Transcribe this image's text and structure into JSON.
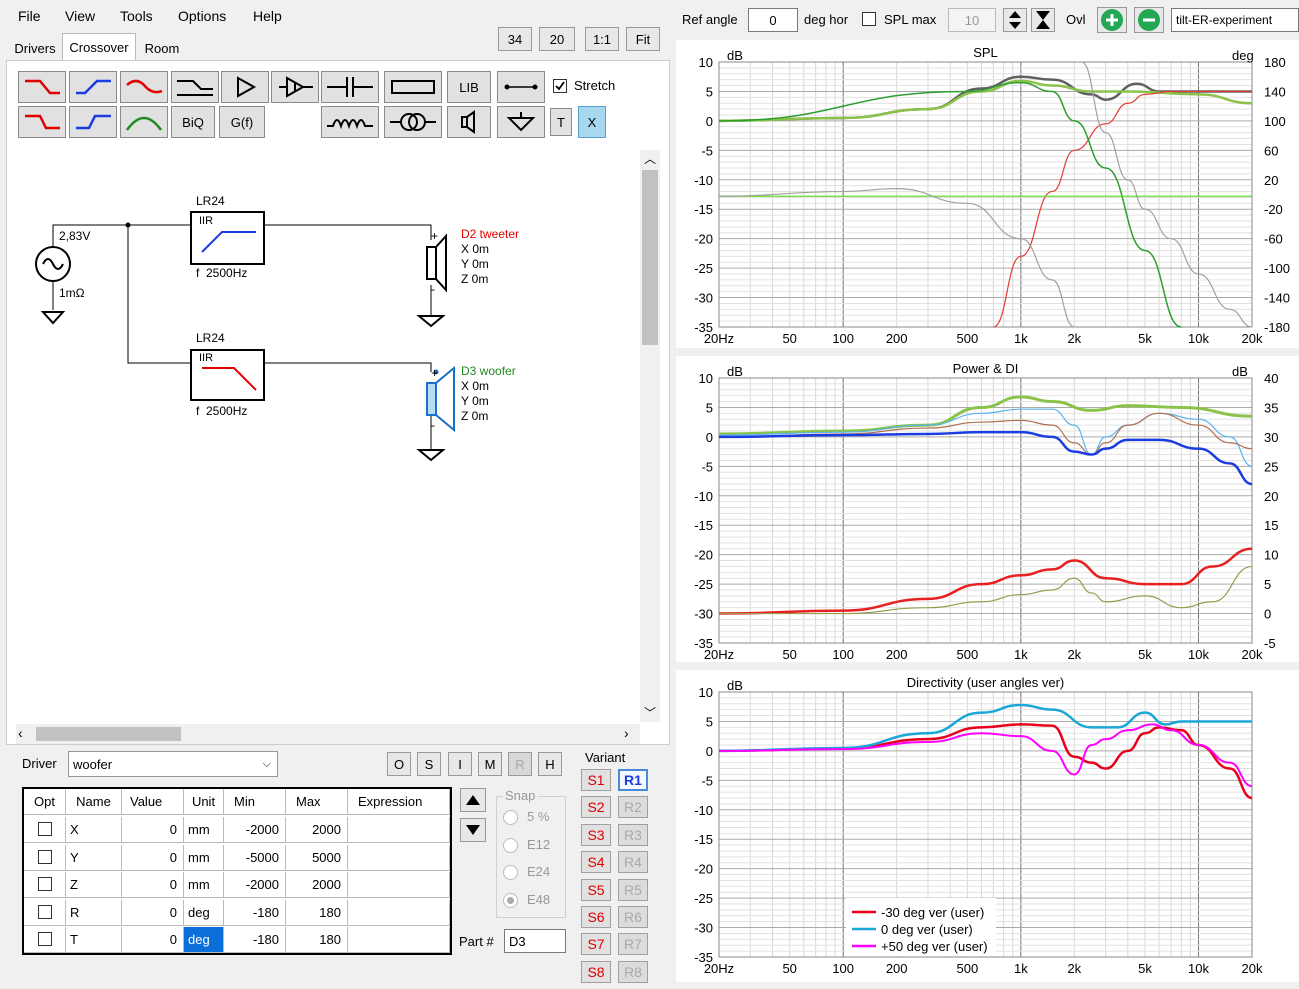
{
  "menu": [
    "File",
    "View",
    "Tools",
    "Options",
    "Help"
  ],
  "tabs": [
    "Drivers",
    "Crossover",
    "Room"
  ],
  "zoom": {
    "v1": "34",
    "v2": "20",
    "one": "1:1",
    "fit": "Fit"
  },
  "toolbar": {
    "lib": "LIB",
    "biq": "BiQ",
    "gf": "G(f)",
    "stretch": "Stretch",
    "t": "T",
    "x": "X"
  },
  "schematic": {
    "source_v": "2,83V",
    "source_r": "1mΩ",
    "hp": {
      "title": "LR24",
      "type": "IIR",
      "freq": "f  2500Hz"
    },
    "lp": {
      "title": "LR24",
      "type": "IIR",
      "freq": "f  2500Hz"
    },
    "tweeter": {
      "name": "D2 tweeter",
      "x": "X 0m",
      "y": "Y 0m",
      "z": "Z 0m"
    },
    "woofer": {
      "name": "D3 woofer",
      "x": "X 0m",
      "y": "Y 0m",
      "z": "Z 0m"
    }
  },
  "driver": {
    "label": "Driver",
    "value": "woofer",
    "buttons": [
      "O",
      "S",
      "I",
      "M",
      "R",
      "H"
    ]
  },
  "table": {
    "headers": [
      "Opt",
      "Name",
      "Value",
      "Unit",
      "Min",
      "Max",
      "Expression"
    ],
    "rows": [
      {
        "name": "X",
        "value": "0",
        "unit": "mm",
        "min": "-2000",
        "max": "2000"
      },
      {
        "name": "Y",
        "value": "0",
        "unit": "mm",
        "min": "-5000",
        "max": "5000"
      },
      {
        "name": "Z",
        "value": "0",
        "unit": "mm",
        "min": "-2000",
        "max": "2000"
      },
      {
        "name": "R",
        "value": "0",
        "unit": "deg",
        "min": "-180",
        "max": "180"
      },
      {
        "name": "T",
        "value": "0",
        "unit": "deg",
        "min": "-180",
        "max": "180"
      }
    ]
  },
  "snap": {
    "title": "Snap",
    "options": [
      "5 %",
      "E12",
      "E24",
      "E48"
    ]
  },
  "part": {
    "label": "Part #",
    "value": "D3"
  },
  "variant": {
    "title": "Variant",
    "s": [
      "S1",
      "S2",
      "S3",
      "S4",
      "S5",
      "S6",
      "S7",
      "S8"
    ],
    "r": [
      "R1",
      "R2",
      "R3",
      "R4",
      "R5",
      "R6",
      "R7",
      "R8"
    ]
  },
  "topbar": {
    "ref_angle": "Ref angle",
    "ref_value": "0",
    "deg_hor": "deg hor",
    "spl_max": "SPL max",
    "spl_value": "10",
    "ovl": "Ovl",
    "project": "tilt-ER-experiment"
  },
  "charts": {
    "spl": {
      "title": "SPL",
      "left_unit": "dB",
      "right_unit": "deg",
      "yticks": [
        "10",
        "5",
        "0",
        "-5",
        "-10",
        "-15",
        "-20",
        "-25",
        "-30",
        "-35"
      ],
      "right_ticks": [
        "180",
        "140",
        "100",
        "60",
        "20",
        "-20",
        "-60",
        "-100",
        "-140",
        "-180"
      ]
    },
    "power": {
      "title": "Power & DI",
      "left_unit": "dB",
      "right_unit": "dB",
      "yticks": [
        "10",
        "5",
        "0",
        "-5",
        "-10",
        "-15",
        "-20",
        "-25",
        "-30",
        "-35"
      ],
      "right_ticks": [
        "40",
        "35",
        "30",
        "25",
        "20",
        "15",
        "10",
        "5",
        "0",
        "-5"
      ]
    },
    "dir": {
      "title": "Directivity (user angles ver)",
      "left_unit": "dB",
      "yticks": [
        "10",
        "5",
        "0",
        "-5",
        "-10",
        "-15",
        "-20",
        "-25",
        "-30",
        "-35"
      ],
      "legend": [
        {
          "label": "-30 deg ver (user)",
          "color": "#e8001c"
        },
        {
          "label": "0 deg ver (user)",
          "color": "#1aa7d8"
        },
        {
          "label": "+50 deg ver (user)",
          "color": "#ff00ff"
        }
      ]
    },
    "xticks": [
      "20Hz",
      "50",
      "100",
      "200",
      "500",
      "1k",
      "2k",
      "5k",
      "10k",
      "20k"
    ]
  },
  "chart_data": [
    {
      "type": "line",
      "title": "SPL",
      "xscale": "log",
      "xlim": [
        20,
        20000
      ],
      "ylim": [
        -35,
        10
      ],
      "ylabel": "dB",
      "series": [
        {
          "color": "#606060",
          "x": [
            20,
            100,
            300,
            600,
            1000,
            1500,
            2500,
            3000,
            4500,
            6000,
            10000,
            20000
          ],
          "y": [
            0,
            0.5,
            2,
            5.5,
            7.5,
            7,
            4.5,
            3.6,
            6.3,
            5,
            5,
            5
          ]
        },
        {
          "color": "#8bc34a",
          "x": [
            20,
            100,
            300,
            600,
            1000,
            1500,
            2500,
            4000,
            10000,
            20000
          ],
          "y": [
            0,
            0.5,
            2,
            5,
            6.8,
            6,
            5,
            5,
            4.5,
            3
          ]
        },
        {
          "color": "#e53935",
          "x": [
            700,
            1000,
            1500,
            2000,
            3000,
            4000,
            5000,
            7000,
            20000
          ],
          "y": [
            -35,
            -23,
            -12,
            -5,
            -0.5,
            3,
            4.5,
            5,
            5
          ]
        },
        {
          "color": "#2e9e2e",
          "x": [
            20,
            500,
            1000,
            1500,
            2000,
            3000,
            5000,
            8000
          ],
          "y": [
            0,
            5,
            6.5,
            5,
            0,
            -8,
            -22,
            -35
          ]
        },
        {
          "color": "#66dd33",
          "x": [
            20,
            20000
          ],
          "y": [
            -12.8,
            -12.8
          ]
        },
        {
          "color": "#a0a0a0",
          "x": [
            20,
            100,
            200,
            500,
            1000,
            1500,
            2000
          ],
          "y": [
            -12.8,
            -12,
            -11.5,
            -14,
            -20,
            -27,
            -35
          ]
        },
        {
          "color": "#a0a0a0",
          "x": [
            2200,
            3000,
            4000,
            5000,
            7000,
            10000,
            15000,
            20000
          ],
          "y": [
            10,
            -2,
            -10,
            -15,
            -20,
            -26,
            -32,
            -35
          ]
        }
      ]
    },
    {
      "type": "line",
      "title": "Power & DI",
      "xscale": "log",
      "xlim": [
        20,
        20000
      ],
      "ylim": [
        -35,
        10
      ],
      "ylabel": "dB",
      "series": [
        {
          "color": "#8bc34a",
          "x": [
            20,
            100,
            300,
            600,
            1000,
            1500,
            2500,
            4000,
            8000,
            20000
          ],
          "y": [
            0.5,
            1,
            2,
            5,
            6.8,
            6,
            4.5,
            5.3,
            5,
            3.5
          ]
        },
        {
          "color": "#5ab4f0",
          "x": [
            20,
            100,
            300,
            600,
            1000,
            1500,
            2000,
            2500,
            3000,
            4000,
            6000,
            10000,
            15000,
            20000
          ],
          "y": [
            0.3,
            0.8,
            2,
            4,
            4.7,
            4.7,
            2,
            -3,
            0,
            2,
            4,
            3,
            0,
            -5
          ]
        },
        {
          "color": "#b07050",
          "x": [
            20,
            100,
            300,
            600,
            1000,
            1500,
            2000,
            2500,
            3000,
            4000,
            6000,
            10000,
            15000,
            20000
          ],
          "y": [
            0,
            0.5,
            1.5,
            2.5,
            2.8,
            2,
            -1,
            -3,
            -1,
            2,
            4,
            2,
            -1,
            -2
          ]
        },
        {
          "color": "#1a3ce0",
          "x": [
            20,
            100,
            300,
            600,
            1000,
            1500,
            2000,
            2500,
            3000,
            4000,
            6000,
            10000,
            15000,
            20000
          ],
          "y": [
            0,
            0.3,
            0.5,
            0.8,
            0.8,
            0,
            -2.5,
            -3,
            -2,
            -0.5,
            -0.5,
            -2,
            -4.5,
            -8
          ]
        },
        {
          "color": "#e82020",
          "x": [
            20,
            100,
            300,
            600,
            1000,
            1500,
            2000,
            3000,
            5000,
            8000,
            12000,
            20000
          ],
          "y": [
            -30,
            -29.5,
            -27.5,
            -25,
            -23.5,
            -22.5,
            -21,
            -24,
            -25,
            -25,
            -22,
            -19
          ]
        },
        {
          "color": "#9a9a50",
          "x": [
            20,
            100,
            300,
            600,
            1000,
            1500,
            2000,
            2500,
            3000,
            5000,
            8000,
            12000,
            20000
          ],
          "y": [
            -30,
            -30,
            -29,
            -28,
            -26.8,
            -26,
            -24,
            -26.5,
            -28,
            -27,
            -29,
            -28,
            -22
          ]
        }
      ]
    },
    {
      "type": "line",
      "title": "Directivity (user angles ver)",
      "xscale": "log",
      "xlim": [
        20,
        20000
      ],
      "ylim": [
        -35,
        10
      ],
      "ylabel": "dB",
      "series": [
        {
          "name": "-30 deg ver (user)",
          "color": "#e8001c",
          "x": [
            20,
            100,
            300,
            600,
            1000,
            1500,
            2000,
            2500,
            3000,
            4000,
            5000,
            6000,
            8000,
            10000,
            15000,
            20000
          ],
          "y": [
            0,
            0.4,
            2,
            4,
            4.5,
            4.3,
            -1,
            -2,
            -3,
            0,
            3,
            4,
            3.5,
            1,
            -3,
            -8
          ]
        },
        {
          "name": "0 deg ver (user)",
          "color": "#1aa7d8",
          "x": [
            20,
            100,
            300,
            600,
            1000,
            1500,
            2500,
            3500,
            5000,
            6500,
            8000,
            10000,
            20000
          ],
          "y": [
            0,
            0.5,
            3,
            6.5,
            7.8,
            7,
            4,
            4,
            6.5,
            4.5,
            5,
            5,
            5
          ]
        },
        {
          "name": "+50 deg ver (user)",
          "color": "#ff00ff",
          "x": [
            20,
            100,
            300,
            600,
            1000,
            1500,
            2000,
            2500,
            3000,
            4000,
            5500,
            7000,
            10000,
            15000,
            20000
          ],
          "y": [
            0,
            0.3,
            1.5,
            3,
            2.5,
            0,
            -4,
            1,
            2,
            3.5,
            4.5,
            3.5,
            1,
            -2,
            -6
          ]
        }
      ]
    }
  ]
}
